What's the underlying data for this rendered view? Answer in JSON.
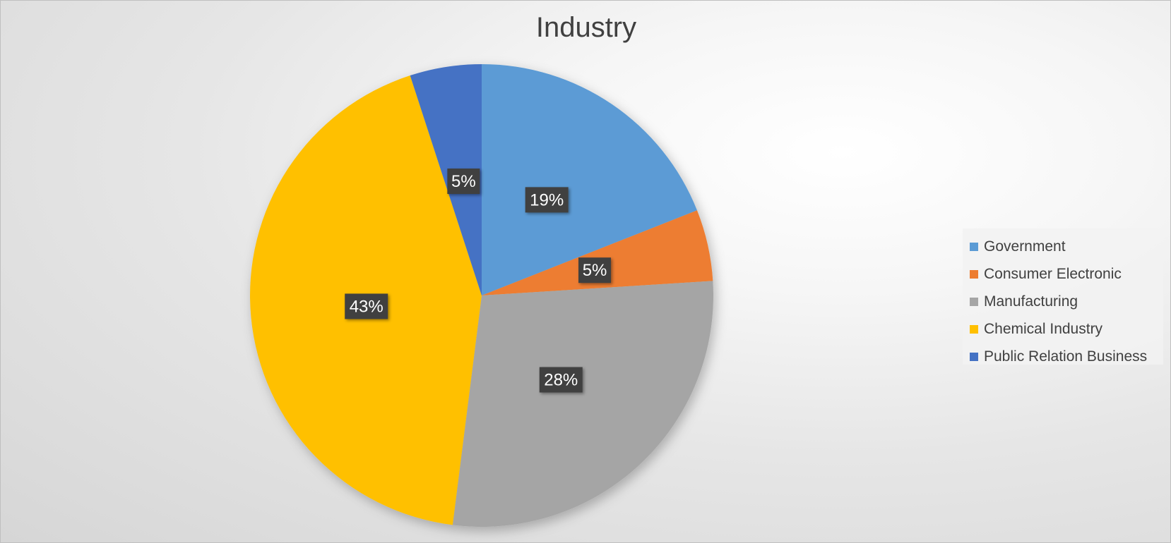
{
  "chart_data": {
    "type": "pie",
    "title": "Industry",
    "categories": [
      "Government",
      "Consumer Electronic",
      "Manufacturing",
      "Chemical Industry",
      "Public Relation Business"
    ],
    "values": [
      19,
      5,
      28,
      43,
      5
    ],
    "data_labels": [
      "19%",
      "5%",
      "28%",
      "43%",
      "5%"
    ],
    "colors": [
      "#5b9bd5",
      "#ed7d31",
      "#a5a5a5",
      "#ffc000",
      "#4472c4"
    ],
    "legend_position": "right"
  }
}
